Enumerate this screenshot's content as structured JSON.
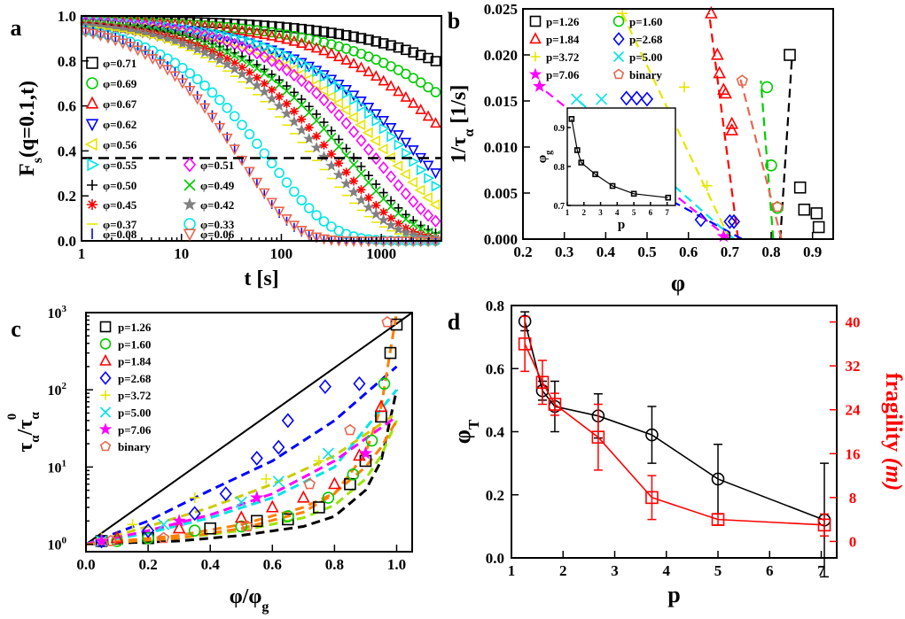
{
  "colors": {
    "black": "#000000",
    "green": "#00cc00",
    "red": "#ff0000",
    "blue": "#0000ff",
    "yellow": "#e6e600",
    "cyan": "#00e5e5",
    "magenta": "#ff00ff",
    "gray": "#808080",
    "orange": "#ff8000",
    "salmon": "#e8664f",
    "lime": "#99e600",
    "darkyellow": "#cccc00"
  },
  "chart_data": [
    {
      "panel_label": "a",
      "type": "scatter",
      "xscale": "log",
      "xlim": [
        1,
        4000
      ],
      "ylim": [
        0.0,
        1.0
      ],
      "xlabel": "t [s]",
      "ylabel": "F",
      "ylabel_sub": "s",
      "ylabel_tail": "(q=0.1,t)",
      "xticks": [
        "1",
        "10",
        "100",
        "1000"
      ],
      "yticks": [
        "0.0",
        "0.2",
        "0.4",
        "0.6",
        "0.8",
        "1.0"
      ],
      "hline": 0.3679,
      "series": [
        {
          "name": "φ=0.71",
          "marker": "square",
          "color": "black",
          "tau": 80000,
          "beta": 0.5
        },
        {
          "name": "φ=0.69",
          "marker": "circle",
          "color": "green",
          "tau": 22000,
          "beta": 0.5
        },
        {
          "name": "φ=0.67",
          "marker": "triangle",
          "color": "red",
          "tau": 8000,
          "beta": 0.55
        },
        {
          "name": "φ=0.62",
          "marker": "triangle-down",
          "color": "blue",
          "tau": 2600,
          "beta": 0.55
        },
        {
          "name": "φ=0.56",
          "marker": "triangle-left",
          "color": "yellow",
          "tau": 1300,
          "beta": 0.6
        },
        {
          "name": "φ=0.55",
          "marker": "triangle-right",
          "color": "cyan",
          "tau": 2000,
          "beta": 0.6
        },
        {
          "name": "φ=0.51",
          "marker": "diamond",
          "color": "magenta",
          "tau": 900,
          "beta": 0.65
        },
        {
          "name": "φ=0.50",
          "marker": "plus",
          "color": "black",
          "tau": 550,
          "beta": 0.65
        },
        {
          "name": "φ=0.49",
          "marker": "cross",
          "color": "green",
          "tau": 480,
          "beta": 0.65
        },
        {
          "name": "φ=0.45",
          "marker": "asterisk",
          "color": "red",
          "tau": 350,
          "beta": 0.65
        },
        {
          "name": "φ=0.42",
          "marker": "star",
          "color": "gray",
          "tau": 280,
          "beta": 0.65
        },
        {
          "name": "φ=0.37",
          "marker": "dash",
          "color": "yellow",
          "tau": 220,
          "beta": 0.65
        },
        {
          "name": "φ=0.33",
          "marker": "circle",
          "color": "cyan",
          "tau": 75,
          "beta": 0.7
        },
        {
          "name": "φ=0.08",
          "marker": "vbar",
          "color": "blue",
          "tau": 40,
          "beta": 0.85
        },
        {
          "name": "φ=0.06",
          "marker": "triangle-down",
          "color": "salmon",
          "tau": 40,
          "beta": 0.8
        }
      ]
    },
    {
      "panel_label": "b",
      "type": "scatter",
      "xlim": [
        0.2,
        0.95
      ],
      "ylim": [
        0.0,
        0.025
      ],
      "xlabel": "φ",
      "ylabel": "1/τ",
      "ylabel_sub": "α",
      "ylabel_tail": " [1/s]",
      "xticks": [
        "0.2",
        "0.3",
        "0.4",
        "0.5",
        "0.6",
        "0.7",
        "0.8",
        "0.9"
      ],
      "yticks": [
        "0.000",
        "0.005",
        "0.010",
        "0.015",
        "0.020",
        "0.025"
      ],
      "legend": [
        {
          "label": "p=1.26",
          "marker": "square",
          "color": "black"
        },
        {
          "label": "p=1.60",
          "marker": "circle",
          "color": "green"
        },
        {
          "label": "p=1.84",
          "marker": "triangle",
          "color": "red"
        },
        {
          "label": "p=2.68",
          "marker": "diamond",
          "color": "blue"
        },
        {
          "label": "p=3.72",
          "marker": "plus",
          "color": "yellow"
        },
        {
          "label": "p=5.00",
          "marker": "cross",
          "color": "cyan"
        },
        {
          "label": "p=7.06",
          "marker": "star",
          "color": "magenta"
        },
        {
          "label": "binary",
          "marker": "pentagon",
          "color": "salmon"
        }
      ],
      "points": [
        {
          "s": 0,
          "x": 0.845,
          "y": 0.02
        },
        {
          "s": 0,
          "x": 0.87,
          "y": 0.0056
        },
        {
          "s": 0,
          "x": 0.88,
          "y": 0.0032
        },
        {
          "s": 0,
          "x": 0.91,
          "y": 0.0028
        },
        {
          "s": 0,
          "x": 0.915,
          "y": 0.0013
        },
        {
          "s": 1,
          "x": 0.79,
          "y": 0.0165
        },
        {
          "s": 1,
          "x": 0.8,
          "y": 0.008
        },
        {
          "s": 1,
          "x": 0.815,
          "y": 0.0034
        },
        {
          "s": 2,
          "x": 0.655,
          "y": 0.0245
        },
        {
          "s": 2,
          "x": 0.67,
          "y": 0.02
        },
        {
          "s": 2,
          "x": 0.675,
          "y": 0.018
        },
        {
          "s": 2,
          "x": 0.685,
          "y": 0.0162
        },
        {
          "s": 2,
          "x": 0.69,
          "y": 0.0158
        },
        {
          "s": 2,
          "x": 0.705,
          "y": 0.0125
        },
        {
          "s": 2,
          "x": 0.705,
          "y": 0.0118
        },
        {
          "s": 3,
          "x": 0.45,
          "y": 0.0153
        },
        {
          "s": 3,
          "x": 0.475,
          "y": 0.0153
        },
        {
          "s": 3,
          "x": 0.5,
          "y": 0.0152
        },
        {
          "s": 3,
          "x": 0.5,
          "y": 0.0135
        },
        {
          "s": 3,
          "x": 0.51,
          "y": 0.0118
        },
        {
          "s": 3,
          "x": 0.505,
          "y": 0.0061
        },
        {
          "s": 3,
          "x": 0.545,
          "y": 0.0056
        },
        {
          "s": 3,
          "x": 0.63,
          "y": 0.0021
        },
        {
          "s": 3,
          "x": 0.7,
          "y": 0.0019
        },
        {
          "s": 3,
          "x": 0.71,
          "y": 0.0019
        },
        {
          "s": 4,
          "x": 0.44,
          "y": 0.0245
        },
        {
          "s": 4,
          "x": 0.59,
          "y": 0.0165
        },
        {
          "s": 4,
          "x": 0.645,
          "y": 0.0058
        },
        {
          "s": 5,
          "x": 0.33,
          "y": 0.0152
        },
        {
          "s": 5,
          "x": 0.39,
          "y": 0.0152
        },
        {
          "s": 5,
          "x": 0.46,
          "y": 0.012
        },
        {
          "s": 5,
          "x": 0.49,
          "y": 0.0098
        },
        {
          "s": 6,
          "x": 0.24,
          "y": 0.0166
        },
        {
          "s": 6,
          "x": 0.435,
          "y": 0.0082
        },
        {
          "s": 6,
          "x": 0.685,
          "y": 0.0003
        },
        {
          "s": 7,
          "x": 0.73,
          "y": 0.0172
        },
        {
          "s": 7,
          "x": 0.815,
          "y": 0.0035
        }
      ],
      "fits": [
        {
          "s": 0,
          "x1": 0.822,
          "y1": 0.0,
          "x2": 0.85,
          "y2": 0.0195
        },
        {
          "s": 1,
          "x1": 0.805,
          "y1": 0.0,
          "x2": 0.775,
          "y2": 0.0172
        },
        {
          "s": 2,
          "x1": 0.72,
          "y1": 0.0,
          "x2": 0.65,
          "y2": 0.0245
        },
        {
          "s": 3,
          "x1": 0.73,
          "y1": 0.0,
          "x2": 0.45,
          "y2": 0.0068
        },
        {
          "s": 4,
          "x1": 0.7,
          "y1": 0.0,
          "x2": 0.44,
          "y2": 0.0245
        },
        {
          "s": 5,
          "x1": 0.71,
          "y1": 0.0,
          "x2": 0.33,
          "y2": 0.0152
        },
        {
          "s": 6,
          "x1": 0.7,
          "y1": 0.0,
          "x2": 0.24,
          "y2": 0.0166
        },
        {
          "s": 7,
          "x1": 0.825,
          "y1": 0.0,
          "x2": 0.725,
          "y2": 0.0175
        }
      ],
      "inset": {
        "xlabel": "p",
        "ylabel": "φ",
        "ylabel_sub": "g",
        "xlim": [
          1,
          7.5
        ],
        "ylim": [
          0.7,
          0.95
        ],
        "xticks": [
          "1",
          "2",
          "3",
          "4",
          "5",
          "6",
          "7"
        ],
        "yticks": [
          "0.7",
          "0.8",
          "0.9"
        ],
        "x": [
          1.26,
          1.6,
          1.84,
          2.68,
          3.72,
          5.0,
          7.06
        ],
        "y": [
          0.922,
          0.842,
          0.81,
          0.78,
          0.75,
          0.73,
          0.72
        ]
      }
    },
    {
      "panel_label": "c",
      "type": "scatter",
      "yscale": "log",
      "xlim": [
        0.0,
        1.05
      ],
      "ylim": [
        0.8,
        1000
      ],
      "xlabel": "φ/φ",
      "xlabel_sub": "g",
      "ylabel": "τ",
      "xticks": [
        "0.0",
        "0.2",
        "0.4",
        "0.6",
        "0.8",
        "1.0"
      ],
      "ytick_base": "10",
      "ytick_exps": [
        "0",
        "1",
        "2",
        "3"
      ],
      "legend": [
        {
          "label": "p=1.26",
          "marker": "square",
          "color": "black"
        },
        {
          "label": "p=1.60",
          "marker": "circle",
          "color": "green"
        },
        {
          "label": "p=1.84",
          "marker": "triangle",
          "color": "red"
        },
        {
          "label": "p=2.68",
          "marker": "diamond",
          "color": "blue"
        },
        {
          "label": "p=3.72",
          "marker": "plus",
          "color": "yellow"
        },
        {
          "label": "p=5.00",
          "marker": "cross",
          "color": "cyan"
        },
        {
          "label": "p=7.06",
          "marker": "star",
          "color": "magenta"
        },
        {
          "label": "binary",
          "marker": "pentagon",
          "color": "salmon"
        }
      ],
      "points": [
        {
          "s": 0,
          "x": 0.05,
          "y": 1.1
        },
        {
          "s": 0,
          "x": 0.2,
          "y": 1.2
        },
        {
          "s": 0,
          "x": 0.4,
          "y": 1.6
        },
        {
          "s": 0,
          "x": 0.55,
          "y": 2.0
        },
        {
          "s": 0,
          "x": 0.65,
          "y": 2.1
        },
        {
          "s": 0,
          "x": 0.75,
          "y": 3.0
        },
        {
          "s": 0,
          "x": 0.85,
          "y": 6.0
        },
        {
          "s": 0,
          "x": 0.9,
          "y": 12
        },
        {
          "s": 0,
          "x": 0.95,
          "y": 45
        },
        {
          "s": 0,
          "x": 0.98,
          "y": 300
        },
        {
          "s": 0,
          "x": 1.0,
          "y": 700
        },
        {
          "s": 1,
          "x": 0.1,
          "y": 1.1
        },
        {
          "s": 1,
          "x": 0.2,
          "y": 1.2
        },
        {
          "s": 1,
          "x": 0.35,
          "y": 1.5
        },
        {
          "s": 1,
          "x": 0.5,
          "y": 1.7
        },
        {
          "s": 1,
          "x": 0.65,
          "y": 2.3
        },
        {
          "s": 1,
          "x": 0.78,
          "y": 4.0
        },
        {
          "s": 1,
          "x": 0.86,
          "y": 8.0
        },
        {
          "s": 1,
          "x": 0.92,
          "y": 22
        },
        {
          "s": 1,
          "x": 0.96,
          "y": 120
        },
        {
          "s": 2,
          "x": 0.1,
          "y": 1.2
        },
        {
          "s": 2,
          "x": 0.3,
          "y": 1.6
        },
        {
          "s": 2,
          "x": 0.5,
          "y": 2.2
        },
        {
          "s": 2,
          "x": 0.6,
          "y": 3.0
        },
        {
          "s": 2,
          "x": 0.7,
          "y": 4.0
        },
        {
          "s": 2,
          "x": 0.8,
          "y": 6.0
        },
        {
          "s": 2,
          "x": 0.88,
          "y": 14
        },
        {
          "s": 2,
          "x": 0.95,
          "y": 60
        },
        {
          "s": 3,
          "x": 0.05,
          "y": 1.1
        },
        {
          "s": 3,
          "x": 0.2,
          "y": 1.5
        },
        {
          "s": 3,
          "x": 0.35,
          "y": 2.5
        },
        {
          "s": 3,
          "x": 0.45,
          "y": 4.5
        },
        {
          "s": 3,
          "x": 0.55,
          "y": 13
        },
        {
          "s": 3,
          "x": 0.62,
          "y": 18
        },
        {
          "s": 3,
          "x": 0.65,
          "y": 40
        },
        {
          "s": 3,
          "x": 0.77,
          "y": 110
        },
        {
          "s": 3,
          "x": 0.88,
          "y": 120
        },
        {
          "s": 4,
          "x": 0.05,
          "y": 1.2
        },
        {
          "s": 4,
          "x": 0.15,
          "y": 1.8
        },
        {
          "s": 4,
          "x": 0.35,
          "y": 4.0
        },
        {
          "s": 4,
          "x": 0.58,
          "y": 7.0
        },
        {
          "s": 4,
          "x": 0.75,
          "y": 12
        },
        {
          "s": 5,
          "x": 0.05,
          "y": 1.1
        },
        {
          "s": 5,
          "x": 0.25,
          "y": 1.8
        },
        {
          "s": 5,
          "x": 0.5,
          "y": 3.5
        },
        {
          "s": 5,
          "x": 0.62,
          "y": 6.5
        },
        {
          "s": 5,
          "x": 0.78,
          "y": 15
        },
        {
          "s": 6,
          "x": 0.05,
          "y": 1.1
        },
        {
          "s": 6,
          "x": 0.3,
          "y": 2.0
        },
        {
          "s": 6,
          "x": 0.55,
          "y": 4.0
        },
        {
          "s": 6,
          "x": 0.9,
          "y": 15
        },
        {
          "s": 7,
          "x": 0.08,
          "y": 1.1
        },
        {
          "s": 7,
          "x": 0.25,
          "y": 1.2
        },
        {
          "s": 7,
          "x": 0.52,
          "y": 1.7
        },
        {
          "s": 7,
          "x": 0.72,
          "y": 6
        },
        {
          "s": 7,
          "x": 0.85,
          "y": 30
        },
        {
          "s": 7,
          "x": 0.97,
          "y": 750
        }
      ],
      "fits": [
        {
          "s": 0,
          "x": [
            0.0,
            0.3,
            0.5,
            0.7,
            0.8,
            0.9,
            0.95,
            1.0
          ],
          "y": [
            1.0,
            1.1,
            1.3,
            1.7,
            2.3,
            5.0,
            12,
            100
          ]
        },
        {
          "s": 1,
          "x": [
            0.0,
            0.3,
            0.5,
            0.7,
            0.8,
            0.9,
            0.95,
            1.0
          ],
          "y": [
            1.0,
            1.2,
            1.5,
            2.2,
            3.2,
            7,
            14,
            40
          ]
        },
        {
          "s": 2,
          "x": [
            0.0,
            0.3,
            0.5,
            0.7,
            0.8,
            0.9,
            0.95,
            1.0
          ],
          "y": [
            1.0,
            1.3,
            1.8,
            3.0,
            4.6,
            10,
            18,
            40
          ]
        },
        {
          "s": 3,
          "x": [
            0.0,
            0.2,
            0.4,
            0.6,
            0.8,
            1.0
          ],
          "y": [
            1.0,
            2.0,
            5.0,
            12,
            40,
            200
          ]
        },
        {
          "s": 4,
          "x": [
            0.0,
            0.2,
            0.4,
            0.6,
            0.8,
            1.0
          ],
          "y": [
            1.0,
            1.7,
            3.0,
            6.0,
            14,
            50
          ]
        },
        {
          "s": 5,
          "x": [
            0.0,
            0.2,
            0.4,
            0.6,
            0.8,
            1.0
          ],
          "y": [
            1.0,
            1.4,
            2.2,
            4.0,
            10,
            100
          ]
        },
        {
          "s": 6,
          "x": [
            0.0,
            0.2,
            0.4,
            0.6,
            0.8,
            1.0
          ],
          "y": [
            1.0,
            1.5,
            2.4,
            4.5,
            12,
            45
          ]
        },
        {
          "s": 7,
          "x": [
            0.0,
            0.3,
            0.5,
            0.7,
            0.8,
            0.9,
            0.95,
            1.0
          ],
          "y": [
            1.0,
            1.2,
            1.6,
            2.6,
            4.5,
            15,
            60,
            1000
          ]
        }
      ],
      "diagonal": {
        "x": [
          0.0,
          1.05
        ],
        "y": [
          1.0,
          1000
        ]
      }
    },
    {
      "panel_label": "d",
      "type": "line",
      "xlim": [
        1,
        7.3
      ],
      "ylim": [
        0.0,
        0.8
      ],
      "y2lim": [
        -3,
        43
      ],
      "xlabel": "p",
      "ylabel": "φ",
      "ylabel_sub": "T",
      "y2label": "fragility",
      "y2label_tail": "(m)",
      "xticks": [
        "1",
        "2",
        "3",
        "4",
        "5",
        "6",
        "7"
      ],
      "yticks": [
        "0.0",
        "0.2",
        "0.4",
        "0.6",
        "0.8"
      ],
      "y2ticks": [
        "0",
        "8",
        "16",
        "24",
        "32",
        "40"
      ],
      "x": [
        1.26,
        1.6,
        1.84,
        2.68,
        3.72,
        5.0,
        7.06
      ],
      "series": [
        {
          "name": "φT",
          "axis": "left",
          "color": "black",
          "marker": "circle",
          "values": [
            0.75,
            0.53,
            0.48,
            0.45,
            0.39,
            0.25,
            0.12
          ],
          "errors": [
            0.03,
            0.03,
            0.08,
            0.07,
            0.09,
            0.11,
            0.18
          ]
        },
        {
          "name": "fragility (m)",
          "axis": "right",
          "color": "red",
          "marker": "square",
          "values": [
            36,
            29,
            25,
            19,
            8,
            4,
            3
          ],
          "errors": [
            5,
            4,
            2,
            6,
            4,
            1,
            2
          ]
        }
      ]
    }
  ]
}
